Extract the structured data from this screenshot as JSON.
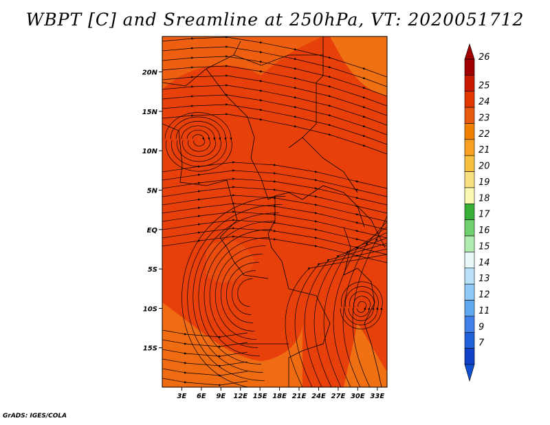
{
  "title": "WBPT [C] and Sreamline at 250hPa, VT: 2020051712",
  "credit": "GrADS: IGES/COLA",
  "map": {
    "lat_ticks": [
      "20N",
      "15N",
      "10N",
      "5N",
      "EQ",
      "5S",
      "10S",
      "15S"
    ],
    "lat_values": [
      20,
      15,
      10,
      5,
      0,
      -5,
      -10,
      -15
    ],
    "lon_ticks": [
      "3E",
      "6E",
      "9E",
      "12E",
      "15E",
      "18E",
      "21E",
      "24E",
      "27E",
      "30E",
      "33E"
    ],
    "lon_values": [
      3,
      6,
      9,
      12,
      15,
      18,
      21,
      24,
      27,
      30,
      33
    ],
    "lat_range": [
      -20,
      24.5
    ],
    "lon_range": [
      0,
      34.5
    ],
    "base_field_color": "#e8400a",
    "cooler_field_color": "#f06c12",
    "streamline_color": "#000000"
  },
  "colorbar": {
    "labels": [
      "26",
      "25",
      "24",
      "23",
      "22",
      "21",
      "20",
      "19",
      "18",
      "17",
      "16",
      "15",
      "14",
      "13",
      "12",
      "11",
      "9",
      "7"
    ],
    "colors": [
      "#a00000",
      "#c81800",
      "#e03800",
      "#e85a10",
      "#f08000",
      "#f8a020",
      "#f8c040",
      "#f8e080",
      "#f8f8b0",
      "#38b038",
      "#70d070",
      "#b0ecb0",
      "#e8f8f8",
      "#b8e0f8",
      "#90c8f8",
      "#60a8f0",
      "#4080e8",
      "#2060d8",
      "#1040c8"
    ],
    "top_arrow_color": "#a00000",
    "bottom_arrow_color": "#1050d0"
  }
}
